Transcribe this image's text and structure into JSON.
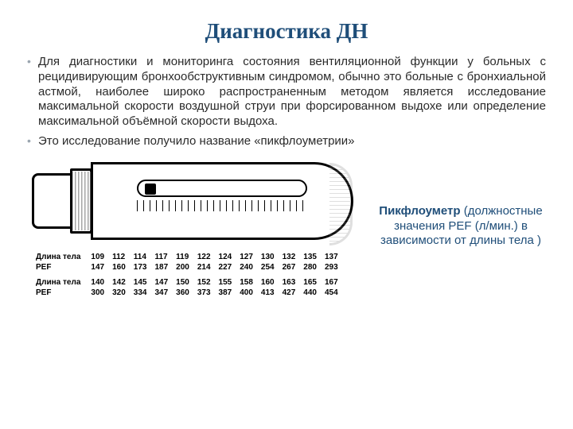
{
  "title": "Диагностика ДН",
  "bullets": {
    "b1": "Для диагностики и мониторинга состояния вентиляционной функции у больных с рецидивирующим бронхообструктивным синдромом, обычно это больные с бронхиальной астмой, наиболее широко распространенным методом является исследование максимальной скорости воздушной струи при форсированном выдохе или определение максимальной объёмной скорости выдоха.",
    "b2": "Это исследование получило название «пикфлоуметрии»"
  },
  "caption": {
    "lead": "Пикфлоуметр",
    "rest": "(должностные значения PEF (л/мин.) в зависимости от длины тела )"
  },
  "table": {
    "row_height_label": "Длина тела",
    "row_pef_label": "PEF",
    "block1_heights": [
      "109",
      "112",
      "114",
      "117",
      "119",
      "122",
      "124",
      "127",
      "130",
      "132",
      "135",
      "137"
    ],
    "block1_pef": [
      "147",
      "160",
      "173",
      "187",
      "200",
      "214",
      "227",
      "240",
      "254",
      "267",
      "280",
      "293"
    ],
    "block2_heights": [
      "140",
      "142",
      "145",
      "147",
      "150",
      "152",
      "155",
      "158",
      "160",
      "163",
      "165",
      "167"
    ],
    "block2_pef": [
      "300",
      "320",
      "334",
      "347",
      "360",
      "373",
      "387",
      "400",
      "413",
      "427",
      "440",
      "454"
    ]
  },
  "colors": {
    "title": "#1f4e79",
    "text": "#2a2a2a",
    "bullet_marker": "#9aa5af",
    "background": "#ffffff",
    "device_stroke": "#000000"
  }
}
